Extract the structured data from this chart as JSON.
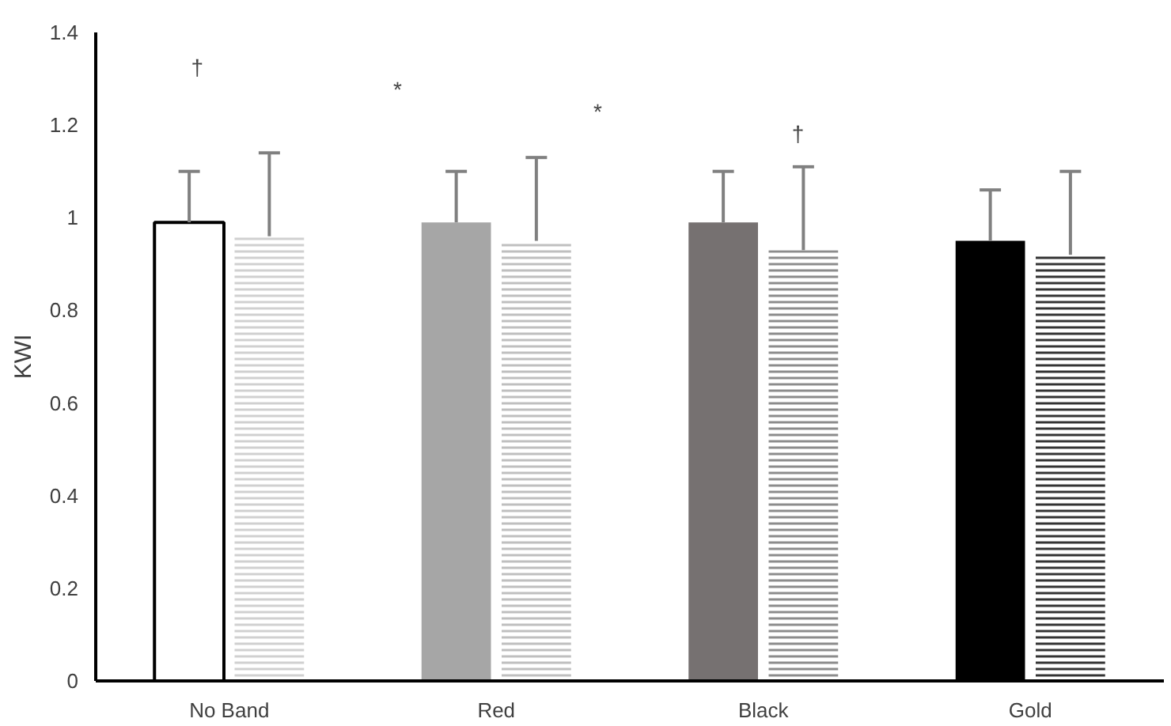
{
  "chart_data": {
    "type": "bar",
    "ylabel": "KWI",
    "categories": [
      "No Band",
      "Red",
      "Black",
      "Gold"
    ],
    "series": [
      {
        "colors": [
          "#ffffff",
          "#a6a6a6",
          "#767171",
          "#000000"
        ],
        "values": [
          0.99,
          0.99,
          0.99,
          0.95
        ],
        "errors": [
          [
            0.99,
            1.1
          ],
          [
            0.99,
            1.1
          ],
          [
            0.99,
            1.1
          ],
          [
            0.95,
            1.06
          ]
        ]
      },
      {
        "colors": [
          "#d0d0d0",
          "#bfbfbf",
          "#8c8c8c",
          "#333333"
        ],
        "values": [
          0.96,
          0.95,
          0.93,
          0.92
        ],
        "errors": [
          [
            0.96,
            1.14
          ],
          [
            0.95,
            1.13
          ],
          [
            0.93,
            1.11
          ],
          [
            0.92,
            1.1
          ]
        ]
      }
    ],
    "ylim": [
      0,
      1.4
    ],
    "yticks": [
      0,
      0.2,
      0.4,
      0.6,
      0.8,
      1,
      1.2,
      1.4
    ],
    "grid": false,
    "annotations": [
      "†",
      "*",
      "*",
      "†"
    ]
  }
}
